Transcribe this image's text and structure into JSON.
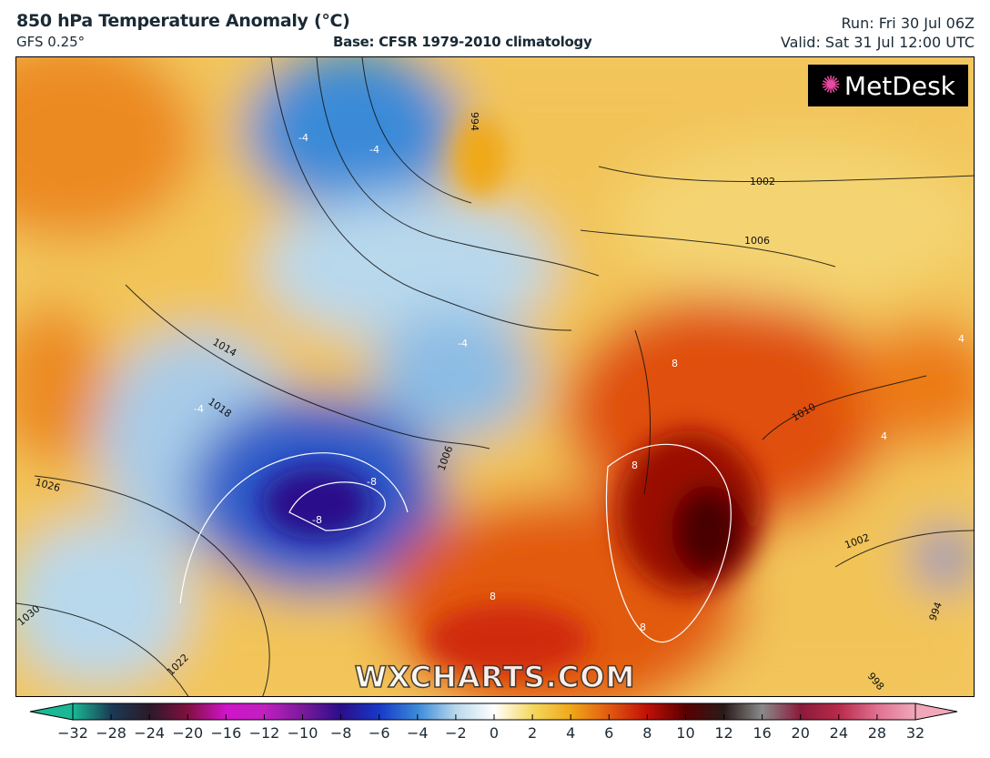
{
  "header": {
    "title": "850 hPa Temperature Anomaly (°C)",
    "model": "GFS 0.25°",
    "base": "Base: CFSR 1979-2010 climatology",
    "run": "Run: Fri 30 Jul 06Z",
    "valid": "Valid: Sat 31 Jul 12:00 UTC"
  },
  "map": {
    "logo_text": "MetDesk",
    "watermark": "WXCHARTS.COM",
    "isobar_labels": [
      "1002",
      "1006",
      "1014",
      "1018",
      "1026",
      "1030",
      "1022",
      "994",
      "1010",
      "1006",
      "994",
      "998",
      "1002"
    ],
    "anomaly_labels": [
      "-4",
      "-4",
      "-4",
      "-4",
      "-8",
      "-8",
      "4",
      "4",
      "8",
      "8",
      "8",
      "8"
    ]
  },
  "colorbar": {
    "ticks": [
      "−32",
      "−28",
      "−24",
      "−20",
      "−16",
      "−12",
      "−10",
      "−8",
      "−6",
      "−4",
      "−2",
      "0",
      "2",
      "4",
      "6",
      "8",
      "10",
      "12",
      "16",
      "20",
      "24",
      "28",
      "32"
    ],
    "colors": [
      "#1ab894",
      "#1b3a55",
      "#2a1a2a",
      "#801040",
      "#d014c8",
      "#c020c0",
      "#7a1a9a",
      "#2a0e8a",
      "#1838c8",
      "#3a8ad8",
      "#b8d8ec",
      "#ffffff",
      "#f4d860",
      "#f0a818",
      "#e25a10",
      "#c01008",
      "#5a0000",
      "#2a1a1a",
      "#8a8a8a",
      "#8a1a3a",
      "#b82a4a",
      "#e07090",
      "#f0a8b8"
    ]
  }
}
